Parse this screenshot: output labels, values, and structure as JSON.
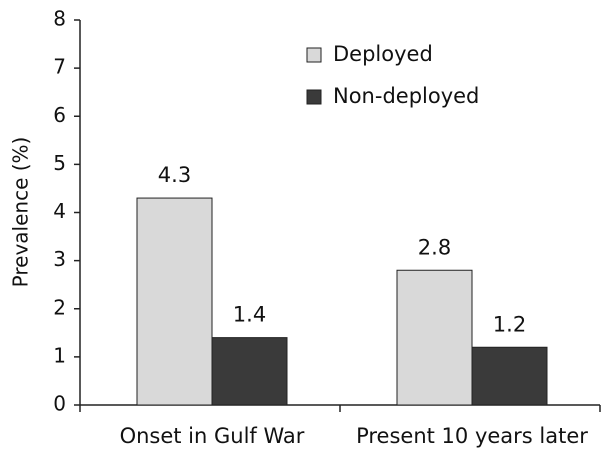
{
  "chart_data": {
    "type": "bar",
    "ylabel": "Prevalence (%)",
    "categories": [
      "Onset in Gulf War",
      "Present 10 years later"
    ],
    "series": [
      {
        "name": "Deployed",
        "color": "#d9d9d9",
        "values": [
          4.3,
          2.8
        ]
      },
      {
        "name": "Non-deployed",
        "color": "#3a3a3a",
        "values": [
          1.4,
          1.2
        ]
      }
    ],
    "ylim": [
      0,
      8
    ],
    "yticks": [
      0,
      1,
      2,
      3,
      4,
      5,
      6,
      7,
      8
    ],
    "legend": "upper right"
  }
}
